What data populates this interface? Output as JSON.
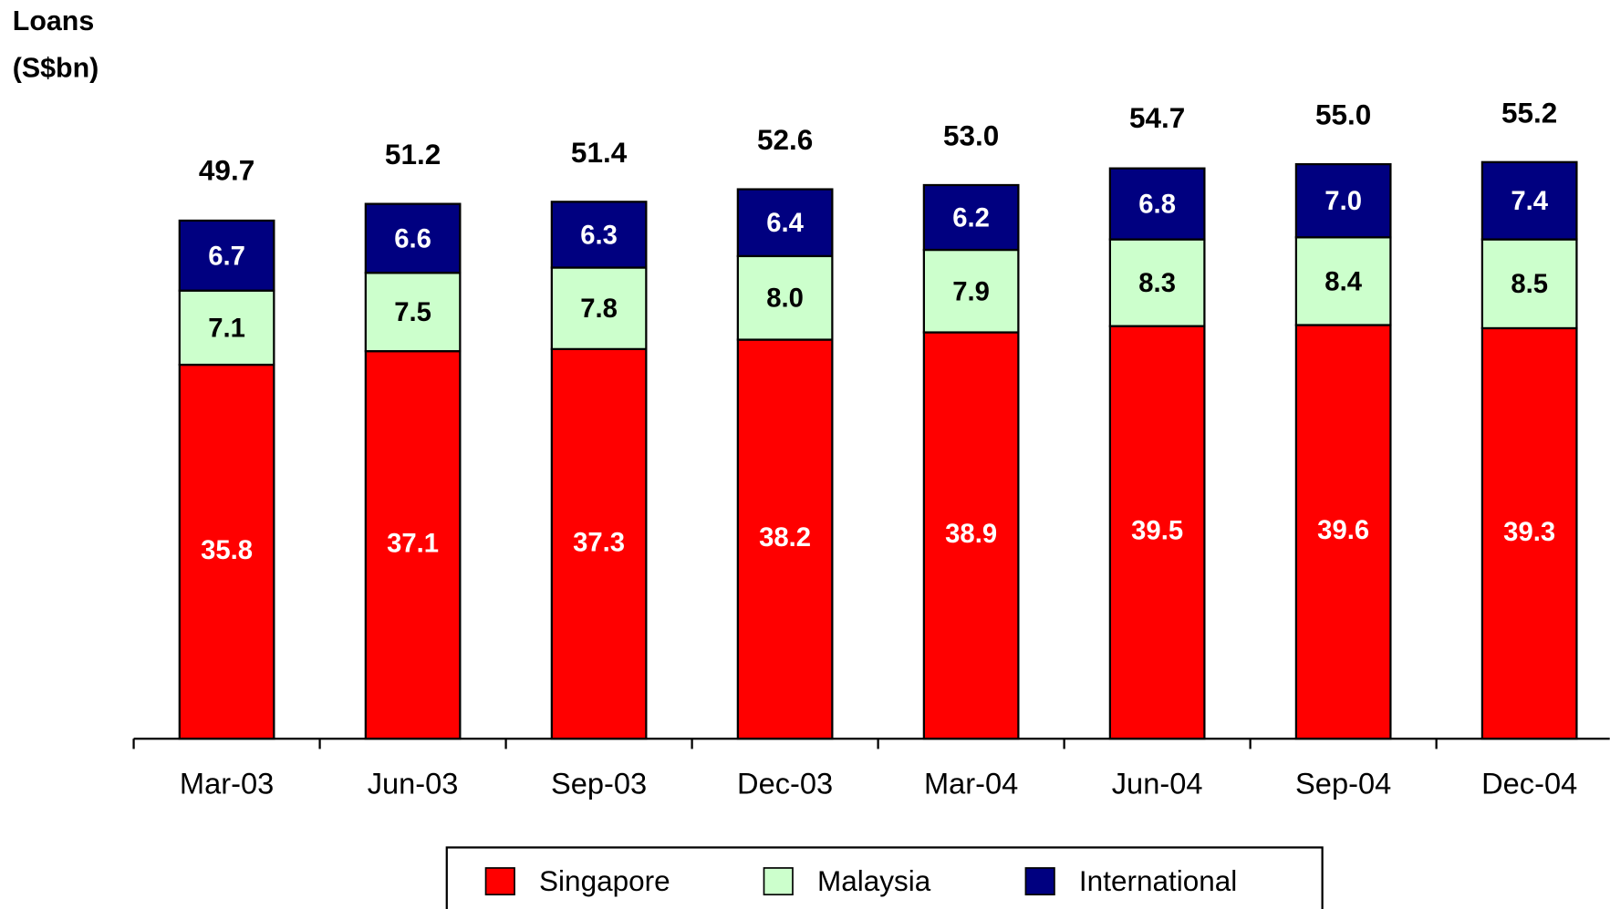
{
  "chart_data": {
    "type": "stacked_bar",
    "title": "Loans",
    "subtitle": "(S$bn)",
    "categories": [
      "Mar-03",
      "Jun-03",
      "Sep-03",
      "Dec-03",
      "Mar-04",
      "Jun-04",
      "Sep-04",
      "Dec-04"
    ],
    "series": [
      {
        "name": "Singapore",
        "color": "#ff0000",
        "values": [
          35.8,
          37.1,
          37.3,
          38.2,
          38.9,
          39.5,
          39.6,
          39.3
        ]
      },
      {
        "name": "Malaysia",
        "color": "#ccffcc",
        "values": [
          7.1,
          7.5,
          7.8,
          8.0,
          7.9,
          8.3,
          8.4,
          8.5
        ]
      },
      {
        "name": "International",
        "color": "#000080",
        "values": [
          6.7,
          6.6,
          6.3,
          6.4,
          6.2,
          6.8,
          7.0,
          7.4
        ]
      }
    ],
    "totals": [
      49.7,
      51.2,
      51.4,
      52.6,
      53.0,
      54.7,
      55.0,
      55.2
    ],
    "totals_labels": [
      "49.7",
      "51.2",
      "51.4",
      "52.6",
      "53.0",
      "54.7",
      "55.0",
      "55.2"
    ],
    "value_labels": [
      [
        "35.8",
        "37.1",
        "37.3",
        "38.2",
        "38.9",
        "39.5",
        "39.6",
        "39.3"
      ],
      [
        "7.1",
        "7.5",
        "7.8",
        "8.0",
        "7.9",
        "8.3",
        "8.4",
        "8.5"
      ],
      [
        "6.7",
        "6.6",
        "6.3",
        "6.4",
        "6.2",
        "6.8",
        "7.0",
        "7.4"
      ]
    ],
    "legend": "bottom"
  }
}
